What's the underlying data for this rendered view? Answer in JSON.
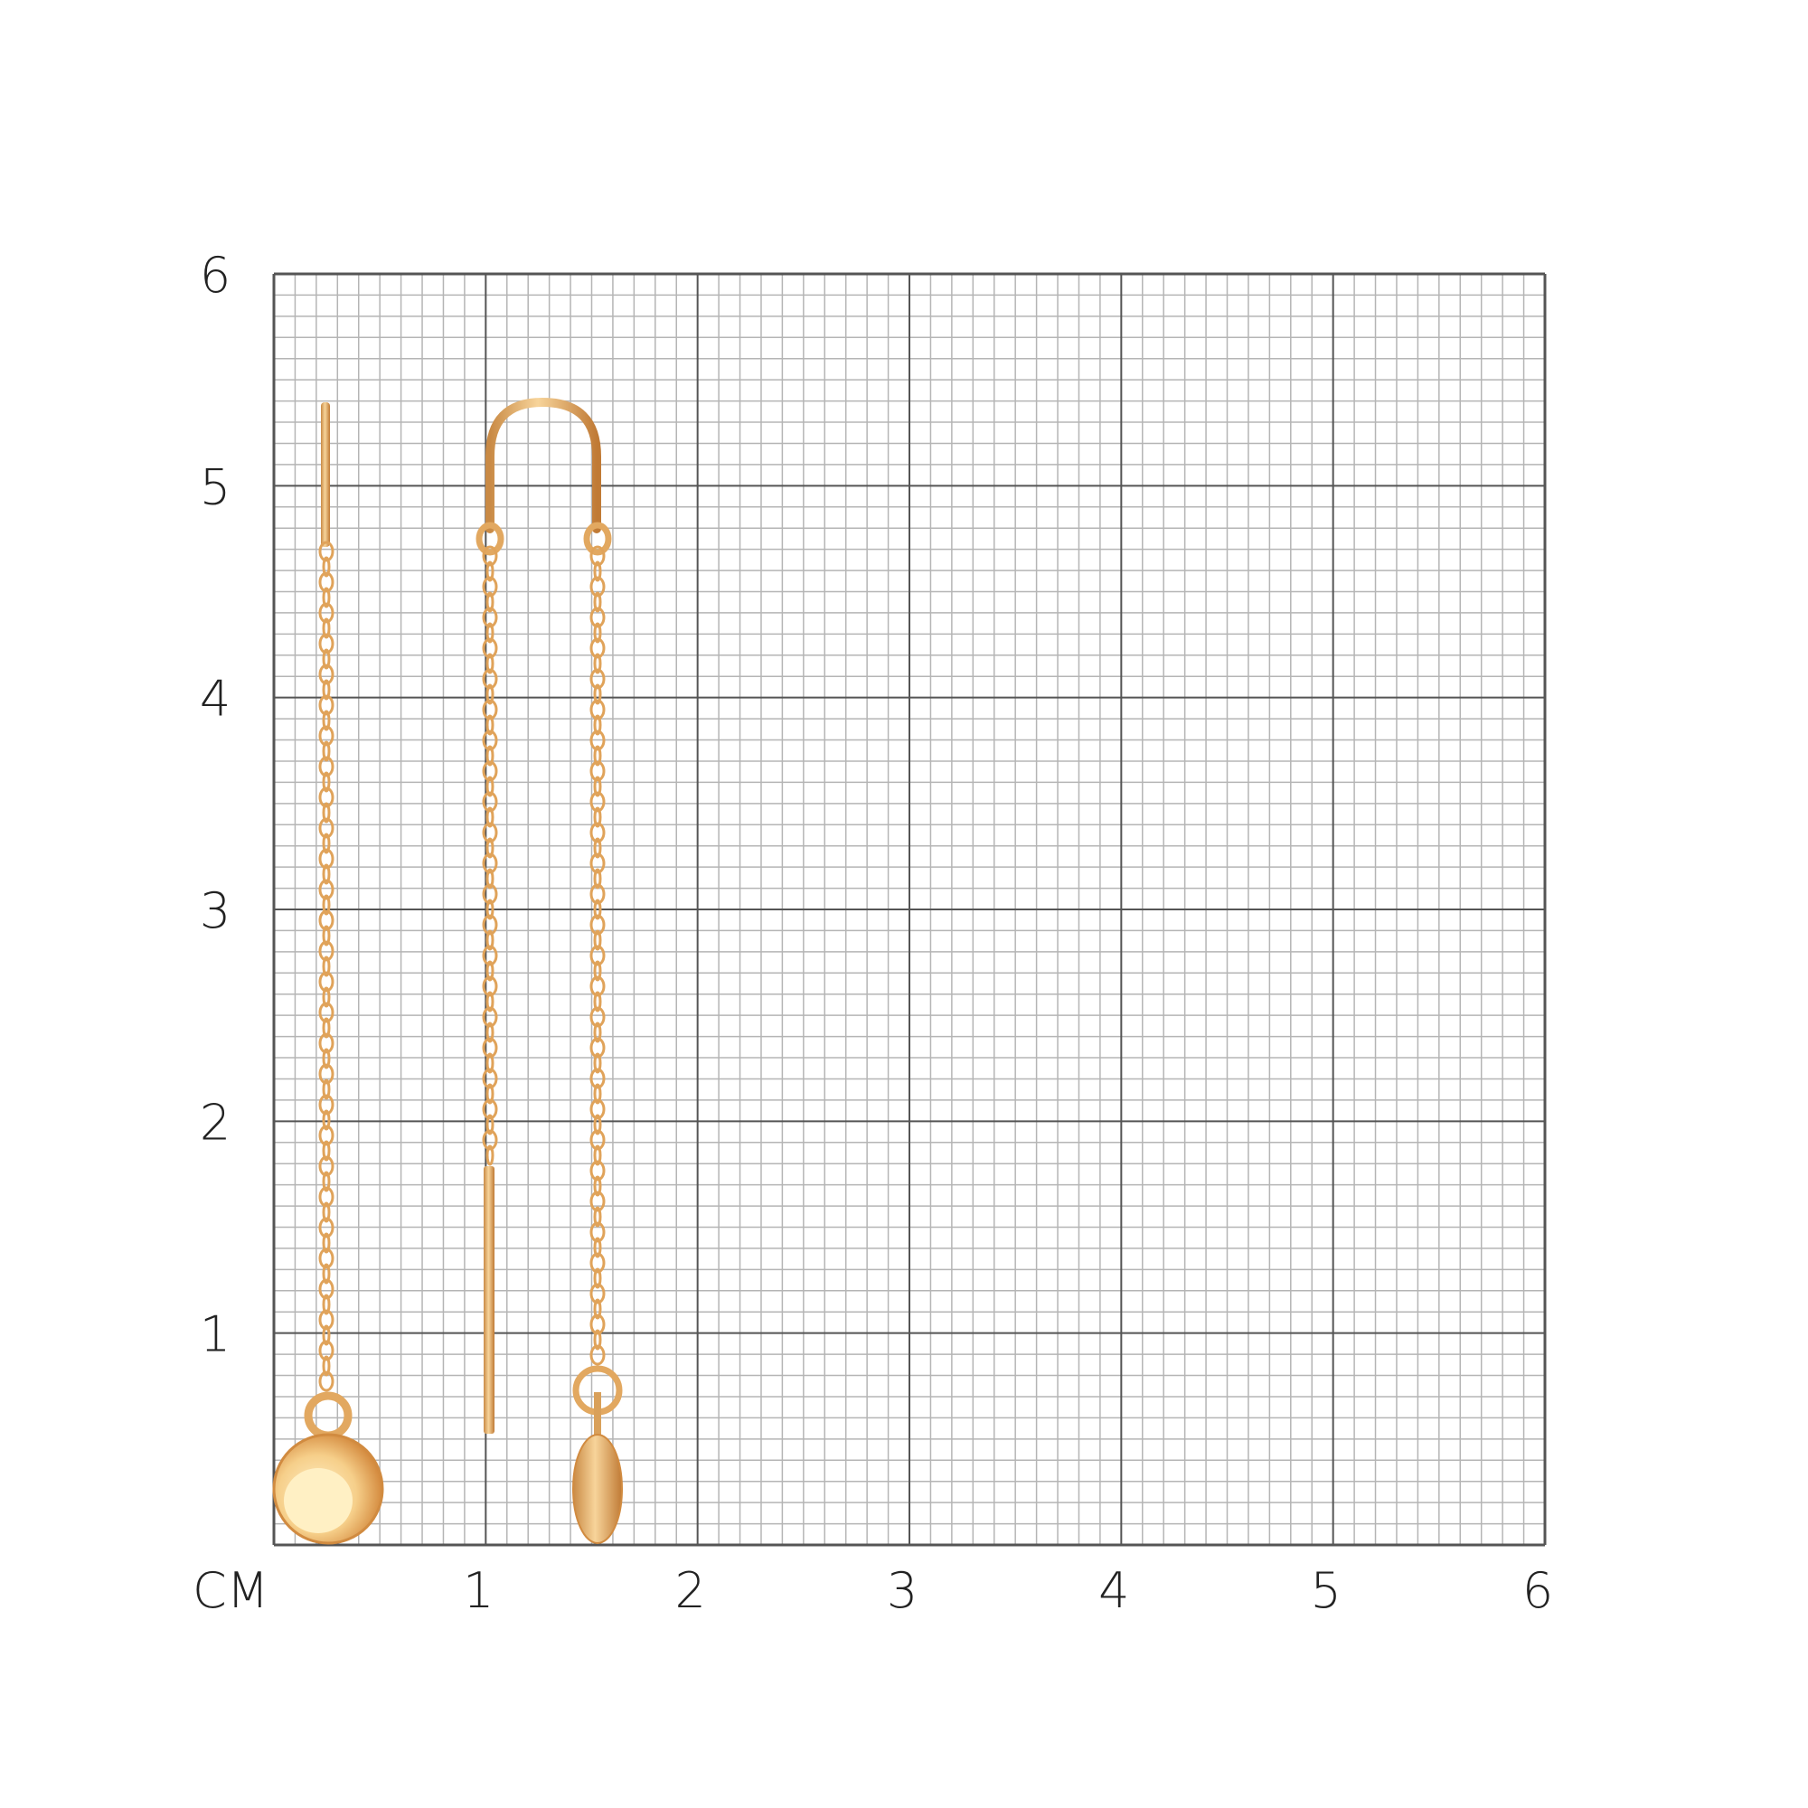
{
  "scale": {
    "unit_label": "СМ",
    "x_ticks": [
      "1",
      "2",
      "3",
      "4",
      "5",
      "6"
    ],
    "y_ticks": [
      "1",
      "2",
      "3",
      "4",
      "5",
      "6"
    ]
  },
  "colors": {
    "grid_minor": "#b5b5b5",
    "grid_major": "#555555",
    "gold": "#e0a35a",
    "gold_light": "#fde7b8",
    "gold_dark": "#b8742e"
  },
  "items": [
    {
      "name": "threader-earring-ball",
      "description_visible": false
    },
    {
      "name": "threader-earring-u-hook-with-drop",
      "description_visible": false
    }
  ]
}
